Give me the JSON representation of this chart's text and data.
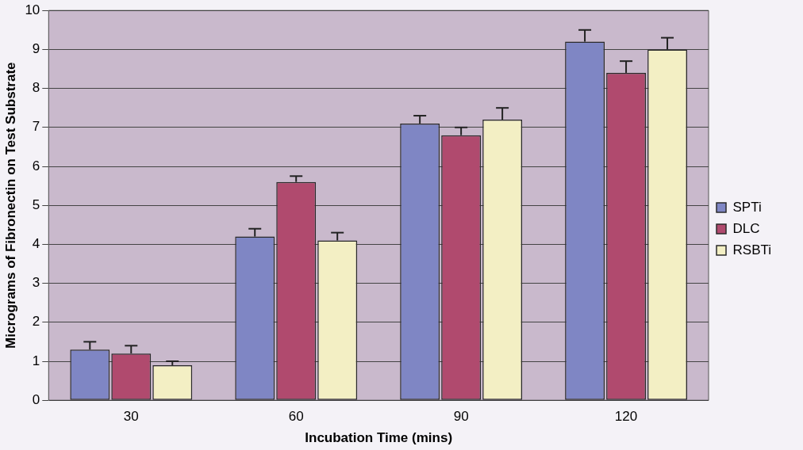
{
  "chart_data": {
    "type": "bar",
    "xlabel": "Incubation Time (mins)",
    "ylabel": "Micrograms of Fibronectin on Test Substrate",
    "categories": [
      "30",
      "60",
      "90",
      "120"
    ],
    "series": [
      {
        "name": "SPTi",
        "color": "#7f86c4",
        "values": [
          1.3,
          4.2,
          7.1,
          9.2
        ],
        "errors": [
          [
            1.3,
            1.5
          ],
          [
            4.2,
            4.4
          ],
          [
            7.1,
            7.3
          ],
          [
            9.2,
            9.5
          ]
        ]
      },
      {
        "name": "DLC",
        "color": "#b04a6e",
        "values": [
          1.2,
          5.6,
          6.8,
          8.4
        ],
        "errors": [
          [
            1.2,
            1.4
          ],
          [
            5.6,
            5.75
          ],
          [
            6.8,
            7.0
          ],
          [
            8.4,
            8.7
          ]
        ]
      },
      {
        "name": "RSBTi",
        "color": "#f3efc4",
        "values": [
          0.9,
          4.1,
          7.2,
          9.0
        ],
        "errors": [
          [
            0.9,
            1.0
          ],
          [
            4.1,
            4.3
          ],
          [
            7.2,
            7.5
          ],
          [
            9.0,
            9.3
          ]
        ]
      }
    ],
    "ylim": [
      0,
      10
    ],
    "yticks": [
      0,
      1,
      2,
      3,
      4,
      5,
      6,
      7,
      8,
      9,
      10
    ],
    "grid": "y",
    "legend": "right"
  }
}
